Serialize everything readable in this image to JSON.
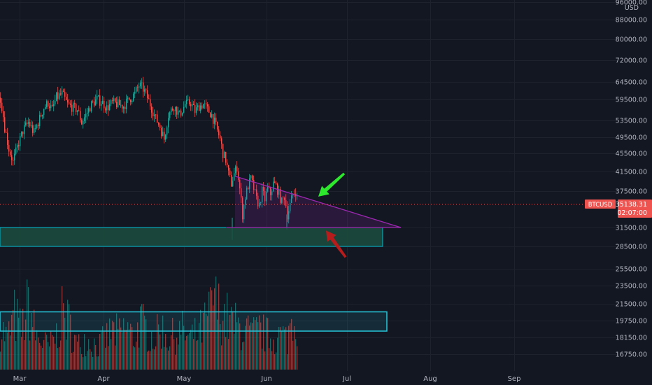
{
  "chart_data": {
    "type": "candlestick",
    "symbol": "BTCUSD",
    "price_axis": {
      "currency": "USD",
      "scale": "log",
      "ticks": [
        "96000.00",
        "88000.00",
        "80000.00",
        "72000.00",
        "64500.00",
        "59500.00",
        "53500.00",
        "49500.00",
        "45500.00",
        "41500.00",
        "37500.00",
        "35138.31",
        "31500.00",
        "28500.00",
        "25500.00",
        "23500.00",
        "21500.00",
        "19750.00",
        "18150.00",
        "16750.00"
      ]
    },
    "time_axis": {
      "ticks": [
        "Mar",
        "Apr",
        "May",
        "Jun",
        "Jul",
        "Aug",
        "Sep"
      ]
    },
    "last_price": {
      "label": "BTCUSD",
      "value": "35138.31",
      "countdown": "02:07:00"
    },
    "price_path": [
      [
        0,
        60000
      ],
      [
        6,
        52000
      ],
      [
        12,
        46500
      ],
      [
        18,
        43500
      ],
      [
        24,
        47000
      ],
      [
        32,
        51000
      ],
      [
        40,
        53000
      ],
      [
        48,
        50500
      ],
      [
        56,
        54000
      ],
      [
        62,
        57000
      ],
      [
        68,
        58500
      ],
      [
        74,
        56500
      ],
      [
        80,
        60000
      ],
      [
        88,
        61000
      ],
      [
        96,
        58000
      ],
      [
        104,
        57000
      ],
      [
        110,
        56500
      ],
      [
        116,
        53000
      ],
      [
        122,
        55000
      ],
      [
        130,
        58000
      ],
      [
        138,
        59500
      ],
      [
        146,
        58500
      ],
      [
        152,
        57000
      ],
      [
        160,
        58500
      ],
      [
        168,
        58000
      ],
      [
        176,
        57500
      ],
      [
        184,
        59500
      ],
      [
        192,
        61000
      ],
      [
        198,
        63500
      ],
      [
        204,
        62500
      ],
      [
        210,
        60000
      ],
      [
        216,
        57000
      ],
      [
        222,
        54000
      ],
      [
        228,
        52000
      ],
      [
        234,
        49000
      ],
      [
        240,
        55000
      ],
      [
        248,
        57500
      ],
      [
        256,
        55000
      ],
      [
        264,
        58000
      ],
      [
        272,
        58500
      ],
      [
        278,
        56000
      ],
      [
        284,
        57500
      ],
      [
        290,
        58000
      ],
      [
        296,
        56500
      ],
      [
        302,
        55000
      ],
      [
        308,
        52000
      ],
      [
        314,
        49000
      ],
      [
        318,
        45500
      ],
      [
        322,
        44000
      ],
      [
        326,
        41000
      ],
      [
        330,
        39000
      ],
      [
        334,
        41000
      ],
      [
        338,
        42500
      ],
      [
        342,
        38000
      ],
      [
        346,
        33500
      ],
      [
        350,
        36500
      ],
      [
        354,
        38500
      ],
      [
        358,
        40000
      ],
      [
        362,
        38000
      ],
      [
        366,
        36000
      ],
      [
        370,
        35000
      ],
      [
        374,
        37500
      ],
      [
        378,
        36000
      ],
      [
        382,
        38000
      ],
      [
        386,
        37000
      ],
      [
        390,
        39000
      ],
      [
        394,
        38500
      ],
      [
        398,
        37000
      ],
      [
        402,
        35500
      ],
      [
        406,
        36500
      ],
      [
        410,
        33500
      ],
      [
        414,
        35000
      ],
      [
        418,
        37000
      ],
      [
        422,
        37500
      ],
      [
        425,
        35500
      ]
    ],
    "volume_path": [
      [
        0,
        0.55
      ],
      [
        10,
        0.4
      ],
      [
        20,
        0.7
      ],
      [
        30,
        0.5
      ],
      [
        40,
        0.85
      ],
      [
        50,
        0.45
      ],
      [
        60,
        0.35
      ],
      [
        70,
        0.3
      ],
      [
        80,
        0.45
      ],
      [
        90,
        0.75
      ],
      [
        100,
        0.55
      ],
      [
        110,
        0.3
      ],
      [
        120,
        0.4
      ],
      [
        130,
        0.35
      ],
      [
        140,
        0.3
      ],
      [
        150,
        0.4
      ],
      [
        160,
        0.5
      ],
      [
        170,
        0.45
      ],
      [
        180,
        0.55
      ],
      [
        190,
        0.4
      ],
      [
        200,
        0.6
      ],
      [
        210,
        0.5
      ],
      [
        220,
        0.4
      ],
      [
        230,
        0.55
      ],
      [
        240,
        0.4
      ],
      [
        250,
        0.45
      ],
      [
        260,
        0.5
      ],
      [
        270,
        0.4
      ],
      [
        280,
        0.45
      ],
      [
        290,
        0.55
      ],
      [
        300,
        0.75
      ],
      [
        305,
        1.0
      ],
      [
        310,
        0.8
      ],
      [
        320,
        0.7
      ],
      [
        330,
        0.6
      ],
      [
        340,
        0.55
      ],
      [
        350,
        0.5
      ],
      [
        360,
        0.45
      ],
      [
        370,
        0.5
      ],
      [
        380,
        0.45
      ],
      [
        390,
        0.4
      ],
      [
        400,
        0.45
      ],
      [
        410,
        0.4
      ],
      [
        418,
        0.75
      ],
      [
        425,
        0.5
      ]
    ],
    "annotations": {
      "triangle": {
        "upper": [
          [
            336,
            40500
          ],
          [
            573,
            31500
          ]
        ],
        "base": [
          [
            323,
            31500
          ],
          [
            573,
            31500
          ]
        ]
      },
      "support_zone": {
        "top": 31500,
        "bottom": 28500,
        "x_start": 0,
        "x_end": 547
      },
      "volume_zone": {
        "x_start": 0,
        "x_end": 553,
        "y_top_frac": 0.81,
        "y_bottom_frac": 0.86
      },
      "arrows": [
        {
          "color": "green",
          "direction": "down-left",
          "tip": [
            455,
            36500
          ]
        },
        {
          "color": "red",
          "direction": "up-left",
          "tip": [
            466,
            31000
          ]
        }
      ]
    },
    "colors": {
      "background": "#131722",
      "grid": "#1e222d",
      "candle_up": "#26a69a",
      "candle_down": "#ef5350",
      "triangle": "#9c27b0",
      "support_zone": "#00bcd4",
      "support_fill": "#1b4d3e",
      "volume_zone": "#26c6da",
      "green_arrow": "#2ee82e",
      "red_arrow": "#b71c1c",
      "price_line": "#ef5350",
      "axis_text": "#b2b5be"
    }
  }
}
